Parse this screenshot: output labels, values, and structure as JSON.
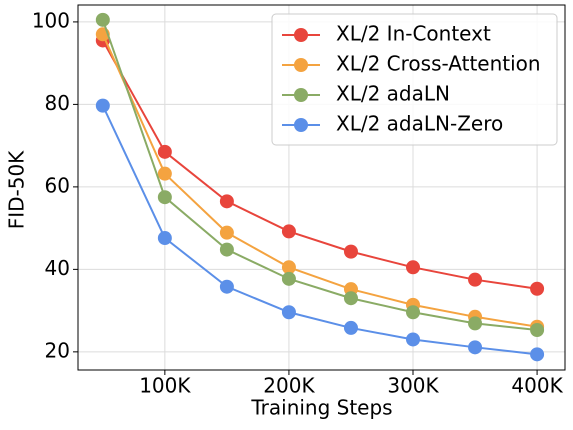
{
  "chart_data": {
    "type": "line",
    "x": [
      50000,
      100000,
      150000,
      200000,
      250000,
      300000,
      350000,
      400000
    ],
    "series": [
      {
        "name": "XL/2 In-Context",
        "color": "#e8453c",
        "values": [
          95.5,
          68.5,
          56.5,
          49.2,
          44.3,
          40.5,
          37.5,
          35.3
        ]
      },
      {
        "name": "XL/2 Cross-Attention",
        "color": "#f4a340",
        "values": [
          97,
          63.2,
          48.9,
          40.5,
          35.2,
          31.4,
          28.5,
          26.1
        ]
      },
      {
        "name": "XL/2 adaLN",
        "color": "#8aab65",
        "values": [
          100.5,
          57.5,
          44.8,
          37.7,
          33,
          29.6,
          26.9,
          25.3
        ]
      },
      {
        "name": "XL/2 adaLN-Zero",
        "color": "#5b8fe8",
        "values": [
          79.7,
          47.6,
          35.8,
          29.6,
          25.8,
          23,
          21.1,
          19.4
        ]
      }
    ],
    "xlabel": "Training Steps",
    "ylabel": "FID-50K",
    "xlim": [
      30000,
      422500
    ],
    "xticks": [
      {
        "value": 100000,
        "label": "100K"
      },
      {
        "value": 200000,
        "label": "200K"
      },
      {
        "value": 300000,
        "label": "300K"
      },
      {
        "value": 400000,
        "label": "400K"
      }
    ],
    "ylim": [
      15.6,
      104.1
    ],
    "yticks": [
      20,
      40,
      60,
      80,
      100
    ],
    "grid": true,
    "legend": "upper right"
  }
}
